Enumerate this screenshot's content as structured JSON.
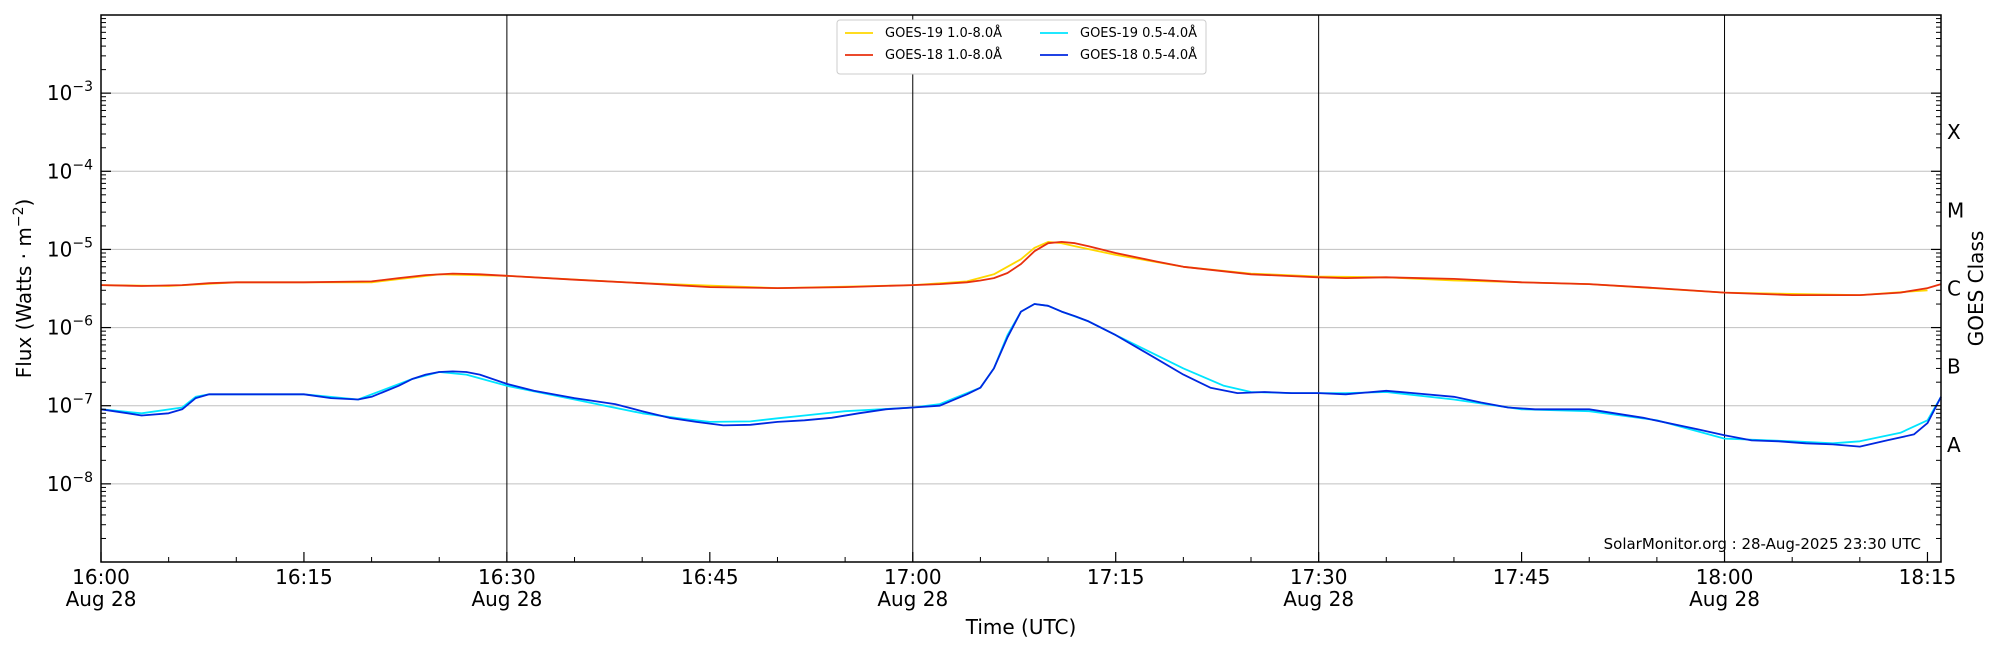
{
  "chart_data": {
    "type": "line",
    "title": "",
    "xlabel": "Time (UTC)",
    "ylabel": "Flux (Watts · m",
    "ylabel_sup": "−2",
    "ylabel_close": ")",
    "right_label": "GOES Class",
    "credit": "SolarMonitor.org : 28-Aug-2025 23:30 UTC",
    "x_unit": "minutes",
    "xlim": [
      0,
      136
    ],
    "ylim_log10": [
      -9,
      -2
    ],
    "y_scale": "log",
    "grid": "horizontal at decades, vertical at half hours",
    "legend_placement": "top-center",
    "x_ticks": [
      {
        "minute": 0,
        "time": "16:00",
        "date": "Aug 28"
      },
      {
        "minute": 15,
        "time": "16:15",
        "date": ""
      },
      {
        "minute": 30,
        "time": "16:30",
        "date": "Aug 28"
      },
      {
        "minute": 45,
        "time": "16:45",
        "date": ""
      },
      {
        "minute": 60,
        "time": "17:00",
        "date": "Aug 28"
      },
      {
        "minute": 75,
        "time": "17:15",
        "date": ""
      },
      {
        "minute": 90,
        "time": "17:30",
        "date": "Aug 28"
      },
      {
        "minute": 105,
        "time": "17:45",
        "date": ""
      },
      {
        "minute": 120,
        "time": "18:00",
        "date": "Aug 28"
      },
      {
        "minute": 135,
        "time": "18:15",
        "date": ""
      }
    ],
    "y_ticks": [
      {
        "exp": -8,
        "label": "10",
        "sup": "−8"
      },
      {
        "exp": -7,
        "label": "10",
        "sup": "−7"
      },
      {
        "exp": -6,
        "label": "10",
        "sup": "−6"
      },
      {
        "exp": -5,
        "label": "10",
        "sup": "−5"
      },
      {
        "exp": -4,
        "label": "10",
        "sup": "−4"
      },
      {
        "exp": -3,
        "label": "10",
        "sup": "−3"
      }
    ],
    "goes_classes": [
      {
        "label": "A",
        "exp": -7.5
      },
      {
        "label": "B",
        "exp": -6.5
      },
      {
        "label": "C",
        "exp": -5.5
      },
      {
        "label": "M",
        "exp": -4.5
      },
      {
        "label": "X",
        "exp": -3.5
      }
    ],
    "legend": [
      {
        "name": "GOES-19 1.0-8.0Å",
        "color": "#ffd700"
      },
      {
        "name": "GOES-19 0.5-4.0Å",
        "color": "#00e5ff"
      },
      {
        "name": "GOES-18 1.0-8.0Å",
        "color": "#e8300e"
      },
      {
        "name": "GOES-18 0.5-4.0Å",
        "color": "#0028e0"
      }
    ],
    "series": [
      {
        "name": "GOES-19 1.0-8.0Å",
        "color": "#ffd700",
        "x": [
          0,
          5,
          10,
          20,
          25,
          30,
          40,
          50,
          60,
          64,
          66,
          68,
          69,
          70,
          71,
          72,
          75,
          80,
          85,
          90,
          95,
          100,
          110,
          120,
          130,
          135
        ],
        "y": [
          3.5e-06,
          3.4e-06,
          3.8e-06,
          3.8e-06,
          4.8e-06,
          4.6e-06,
          3.7e-06,
          3.2e-06,
          3.5e-06,
          3.9e-06,
          4.8e-06,
          7.5e-06,
          1.05e-05,
          1.25e-05,
          1.2e-05,
          1.1e-05,
          8.5e-06,
          6e-06,
          4.9e-06,
          4.5e-06,
          4.4e-06,
          4e-06,
          3.6e-06,
          2.8e-06,
          2.6e-06,
          3e-06
        ]
      },
      {
        "name": "GOES-19 0.5-4.0Å",
        "color": "#00e5ff",
        "x": [
          0,
          3,
          6,
          7,
          8,
          10,
          15,
          19,
          23,
          25,
          27,
          30,
          35,
          40,
          43,
          45,
          48,
          50,
          52,
          55,
          60,
          62,
          65,
          66,
          67,
          68,
          69,
          70,
          71,
          73,
          75,
          80,
          83,
          85,
          88,
          92,
          95,
          100,
          105,
          110,
          115,
          120,
          125,
          128,
          130,
          133,
          135,
          136
        ],
        "y": [
          9e-08,
          8e-08,
          9.5e-08,
          1.3e-07,
          1.4e-07,
          1.4e-07,
          1.4e-07,
          1.2e-07,
          2.2e-07,
          2.7e-07,
          2.5e-07,
          1.8e-07,
          1.2e-07,
          8e-08,
          6.8e-08,
          6.2e-08,
          6.3e-08,
          6.9e-08,
          7.5e-08,
          8.5e-08,
          9.5e-08,
          1.05e-07,
          1.7e-07,
          3e-07,
          8e-07,
          1.6e-06,
          2e-06,
          1.9e-06,
          1.6e-06,
          1.2e-06,
          8e-07,
          3e-07,
          1.8e-07,
          1.5e-07,
          1.45e-07,
          1.45e-07,
          1.5e-07,
          1.2e-07,
          9e-08,
          8.5e-08,
          6.5e-08,
          3.8e-08,
          3.5e-08,
          3.3e-08,
          3.5e-08,
          4.5e-08,
          6.5e-08,
          1.3e-07
        ]
      },
      {
        "name": "GOES-18 1.0-8.0Å",
        "color": "#e8300e",
        "x": [
          0,
          3,
          6,
          8,
          10,
          15,
          20,
          22,
          24,
          26,
          28,
          30,
          35,
          40,
          45,
          50,
          55,
          60,
          62,
          64,
          65,
          66,
          67,
          68,
          69,
          70,
          71,
          72,
          73,
          75,
          78,
          80,
          85,
          90,
          92,
          95,
          100,
          105,
          110,
          115,
          120,
          125,
          130,
          133,
          135,
          136
        ],
        "y": [
          3.5e-06,
          3.4e-06,
          3.5e-06,
          3.7e-06,
          3.8e-06,
          3.8e-06,
          3.9e-06,
          4.3e-06,
          4.7e-06,
          4.9e-06,
          4.8e-06,
          4.6e-06,
          4.1e-06,
          3.7e-06,
          3.3e-06,
          3.2e-06,
          3.3e-06,
          3.5e-06,
          3.6e-06,
          3.8e-06,
          4e-06,
          4.3e-06,
          5e-06,
          6.5e-06,
          9.5e-06,
          1.2e-05,
          1.25e-05,
          1.2e-05,
          1.1e-05,
          9e-06,
          7e-06,
          6e-06,
          4.8e-06,
          4.4e-06,
          4.3e-06,
          4.4e-06,
          4.2e-06,
          3.8e-06,
          3.6e-06,
          3.2e-06,
          2.8e-06,
          2.6e-06,
          2.6e-06,
          2.8e-06,
          3.2e-06,
          3.6e-06
        ]
      },
      {
        "name": "GOES-18 0.5-4.0Å",
        "color": "#0028e0",
        "x": [
          0,
          2,
          3,
          5,
          6,
          7,
          8,
          10,
          15,
          17,
          19,
          20,
          22,
          23,
          24,
          25,
          26,
          27,
          28,
          30,
          32,
          35,
          38,
          40,
          42,
          44,
          46,
          48,
          50,
          52,
          54,
          56,
          58,
          60,
          62,
          64,
          65,
          66,
          67,
          68,
          69,
          70,
          71,
          72,
          73,
          75,
          78,
          80,
          82,
          84,
          86,
          88,
          90,
          92,
          93,
          95,
          97,
          100,
          102,
          104,
          106,
          110,
          114,
          118,
          120,
          122,
          124,
          126,
          128,
          130,
          132,
          134,
          135,
          136
        ],
        "y": [
          9e-08,
          8e-08,
          7.5e-08,
          8e-08,
          9e-08,
          1.25e-07,
          1.4e-07,
          1.4e-07,
          1.4e-07,
          1.25e-07,
          1.2e-07,
          1.3e-07,
          1.8e-07,
          2.2e-07,
          2.5e-07,
          2.7e-07,
          2.75e-07,
          2.7e-07,
          2.5e-07,
          1.9e-07,
          1.55e-07,
          1.25e-07,
          1.05e-07,
          8.5e-08,
          7e-08,
          6.2e-08,
          5.6e-08,
          5.7e-08,
          6.2e-08,
          6.5e-08,
          7e-08,
          8e-08,
          9e-08,
          9.5e-08,
          1e-07,
          1.4e-07,
          1.7e-07,
          3e-07,
          7.5e-07,
          1.6e-06,
          2e-06,
          1.9e-06,
          1.6e-06,
          1.4e-06,
          1.2e-06,
          8e-07,
          4e-07,
          2.5e-07,
          1.7e-07,
          1.45e-07,
          1.5e-07,
          1.45e-07,
          1.45e-07,
          1.4e-07,
          1.45e-07,
          1.55e-07,
          1.45e-07,
          1.3e-07,
          1.1e-07,
          9.5e-08,
          9e-08,
          9e-08,
          7e-08,
          5e-08,
          4.2e-08,
          3.6e-08,
          3.5e-08,
          3.3e-08,
          3.2e-08,
          3e-08,
          3.6e-08,
          4.3e-08,
          6e-08,
          1.3e-07
        ]
      }
    ]
  }
}
